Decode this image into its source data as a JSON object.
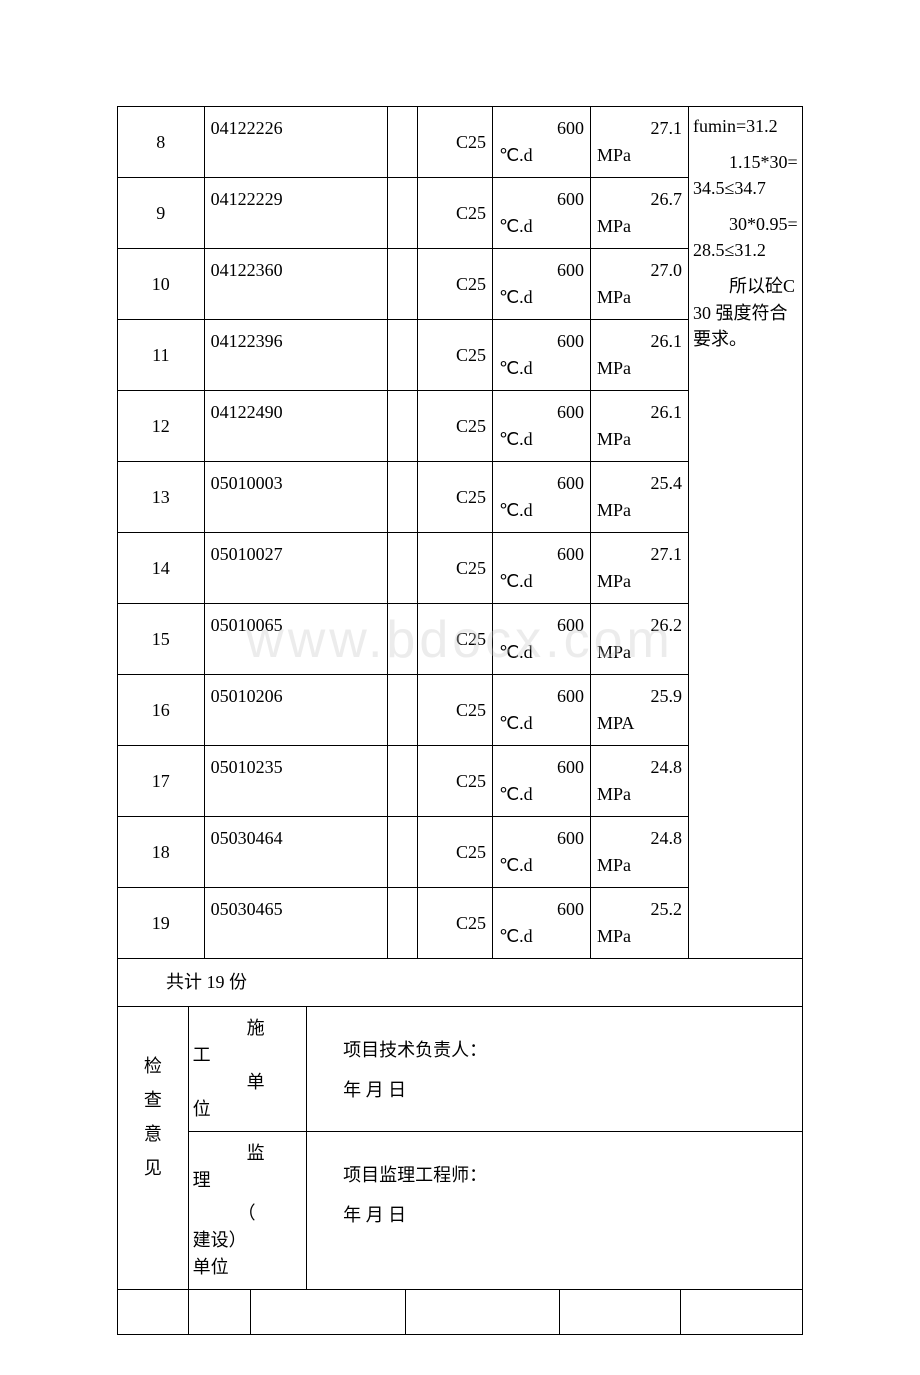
{
  "rows": [
    {
      "seq": "8",
      "code": "04122226",
      "grade": "C25",
      "temp_num": "600",
      "temp_unit": "℃.d",
      "str_num": "27.1",
      "str_unit": "MPa"
    },
    {
      "seq": "9",
      "code": "04122229",
      "grade": "C25",
      "temp_num": "600",
      "temp_unit": "℃.d",
      "str_num": "26.7",
      "str_unit": "MPa"
    },
    {
      "seq": "10",
      "code": "04122360",
      "grade": "C25",
      "temp_num": "600",
      "temp_unit": "℃.d",
      "str_num": "27.0",
      "str_unit": "MPa"
    },
    {
      "seq": "11",
      "code": "04122396",
      "grade": "C25",
      "temp_num": "600",
      "temp_unit": "℃.d",
      "str_num": "26.1",
      "str_unit": "MPa"
    },
    {
      "seq": "12",
      "code": "04122490",
      "grade": "C25",
      "temp_num": "600",
      "temp_unit": "℃.d",
      "str_num": "26.1",
      "str_unit": "MPa"
    },
    {
      "seq": "13",
      "code": "05010003",
      "grade": "C25",
      "temp_num": "600",
      "temp_unit": "℃.d",
      "str_num": "25.4",
      "str_unit": "MPa"
    },
    {
      "seq": "14",
      "code": "05010027",
      "grade": "C25",
      "temp_num": "600",
      "temp_unit": "℃.d",
      "str_num": "27.1",
      "str_unit": "MPa"
    },
    {
      "seq": "15",
      "code": "05010065",
      "grade": "C25",
      "temp_num": "600",
      "temp_unit": "℃.d",
      "str_num": "26.2",
      "str_unit": "MPa"
    },
    {
      "seq": "16",
      "code": "05010206",
      "grade": "C25",
      "temp_num": "600",
      "temp_unit": "℃.d",
      "str_num": "25.9",
      "str_unit": "MPA"
    },
    {
      "seq": "17",
      "code": "05010235",
      "grade": "C25",
      "temp_num": "600",
      "temp_unit": "℃.d",
      "str_num": "24.8",
      "str_unit": "MPa"
    },
    {
      "seq": "18",
      "code": "05030464",
      "grade": "C25",
      "temp_num": "600",
      "temp_unit": "℃.d",
      "str_num": "24.8",
      "str_unit": "MPa"
    },
    {
      "seq": "19",
      "code": "05030465",
      "grade": "C25",
      "temp_num": "600",
      "temp_unit": "℃.d",
      "str_num": "25.2",
      "str_unit": "MPa"
    }
  ],
  "evaluation": {
    "line1": "fumin=31.2",
    "line2_indent": "1.15*30=34.5≤34.7",
    "line3_indent": "30*0.95=28.5≤31.2",
    "line4_indent": "所以砼C30 强度符合要求。"
  },
  "summary": "共计 19 份",
  "opinion": {
    "header_chars": [
      "检",
      "查",
      "意",
      "见"
    ],
    "construction_unit": "施工单位",
    "supervision_unit_1": "监理",
    "supervision_unit_2": "（建设）单位",
    "tech_lead": "项目技术负责人：",
    "eng": "项目监理工程师：",
    "date": "年 月 日"
  },
  "watermark": "www.bdocx.com",
  "colors": {
    "text": "#000000",
    "border": "#000000",
    "background": "#ffffff",
    "watermark": "rgba(200,200,200,0.35)"
  },
  "fontsize": {
    "body": 18,
    "watermark": 52
  }
}
